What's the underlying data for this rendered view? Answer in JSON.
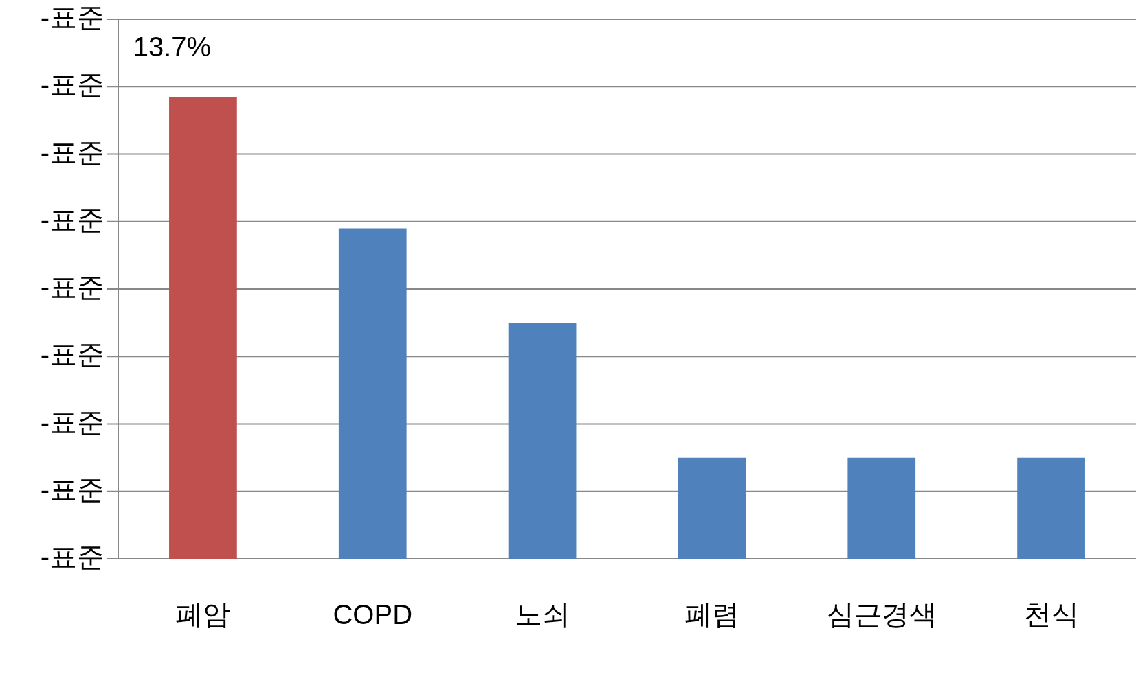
{
  "chart_data": {
    "type": "bar",
    "ylim": [
      0,
      16
    ],
    "categories": [
      "폐암",
      "COPD",
      "노쇠",
      "폐렴",
      "심근경색",
      "천식"
    ],
    "values": [
      13.7,
      9.8,
      7.0,
      3.0,
      3.0,
      3.0
    ],
    "colors": [
      "#c0504d",
      "#4f81bd",
      "#4f81bd",
      "#4f81bd",
      "#4f81bd",
      "#4f81bd"
    ],
    "value_labels": [
      "13.7%",
      null,
      null,
      null,
      null,
      null
    ],
    "annotations": [
      "-표준",
      "-표준",
      "-표준",
      "-표준",
      "-표준",
      "-표준",
      "-표준",
      "-표준",
      "-표준"
    ],
    "grid": "y",
    "legend": false
  }
}
